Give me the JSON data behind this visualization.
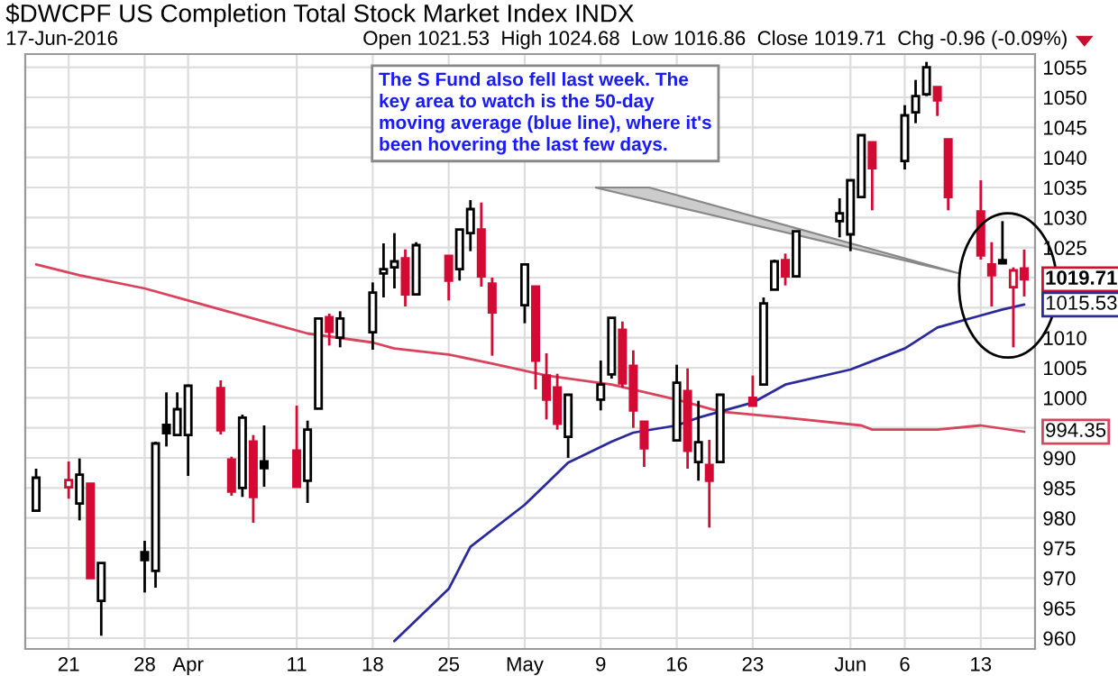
{
  "chart_data": {
    "type": "candlestick",
    "title": "$DWCPF US Completion Total Stock Market Index INDX",
    "subtitle": "17-Jun-2016",
    "annotations": [
      "Open 1021.53  High 1024.68  Low 1016.86  Close 1019.71  Chg -0.96 (-0.09%)",
      "The S Fund also fell last week. The\nkey area to watch is the 50-day\nmoving average (blue line), where it's\nbeen hovering the last few days."
    ],
    "x": [
      "2016-03-18",
      "2016-03-21",
      "2016-03-22",
      "2016-03-23",
      "2016-03-24",
      "2016-03-28",
      "2016-03-29",
      "2016-03-30",
      "2016-03-31",
      "2016-04-01",
      "2016-04-04",
      "2016-04-05",
      "2016-04-06",
      "2016-04-07",
      "2016-04-08",
      "2016-04-11",
      "2016-04-12",
      "2016-04-13",
      "2016-04-14",
      "2016-04-15",
      "2016-04-18",
      "2016-04-19",
      "2016-04-20",
      "2016-04-21",
      "2016-04-22",
      "2016-04-25",
      "2016-04-26",
      "2016-04-27",
      "2016-04-28",
      "2016-04-29",
      "2016-05-02",
      "2016-05-03",
      "2016-05-04",
      "2016-05-05",
      "2016-05-06",
      "2016-05-09",
      "2016-05-10",
      "2016-05-11",
      "2016-05-12",
      "2016-05-13",
      "2016-05-16",
      "2016-05-17",
      "2016-05-18",
      "2016-05-19",
      "2016-05-20",
      "2016-05-23",
      "2016-05-24",
      "2016-05-25",
      "2016-05-26",
      "2016-05-27",
      "2016-05-31",
      "2016-06-01",
      "2016-06-02",
      "2016-06-03",
      "2016-06-06",
      "2016-06-07",
      "2016-06-08",
      "2016-06-09",
      "2016-06-10",
      "2016-06-13",
      "2016-06-14",
      "2016-06-15",
      "2016-06-16",
      "2016-06-17"
    ],
    "ohlc": [
      [
        981.2,
        988.2,
        981.2,
        986.7
      ],
      [
        985.1,
        989.4,
        983.2,
        986.3
      ],
      [
        982.4,
        989.9,
        979.6,
        987.2
      ],
      [
        985.7,
        985.7,
        970.0,
        970.0
      ],
      [
        966.2,
        972.5,
        960.4,
        972.5
      ],
      [
        974.3,
        976.2,
        967.6,
        973.0
      ],
      [
        971.2,
        992.7,
        968.4,
        992.4
      ],
      [
        995.5,
        1000.9,
        991.9,
        994.1
      ],
      [
        993.8,
        1000.9,
        993.8,
        998.1
      ],
      [
        993.8,
        1002.2,
        987.0,
        1002.0
      ],
      [
        1001.6,
        1002.9,
        993.9,
        994.6
      ],
      [
        989.7,
        990.2,
        983.7,
        984.4
      ],
      [
        985.0,
        997.2,
        983.5,
        996.7
      ],
      [
        992.7,
        993.8,
        979.2,
        983.5
      ],
      [
        989.4,
        995.4,
        985.2,
        988.3
      ],
      [
        991.2,
        998.7,
        985.2,
        985.2
      ],
      [
        986.2,
        996.2,
        982.5,
        994.7
      ],
      [
        998.2,
        1013.2,
        998.2,
        1013.2
      ],
      [
        1013.4,
        1014.0,
        1008.7,
        1011.0
      ],
      [
        1010.0,
        1014.4,
        1008.4,
        1013.2
      ],
      [
        1010.9,
        1019.2,
        1008.0,
        1017.5
      ],
      [
        1020.7,
        1025.7,
        1016.7,
        1021.4
      ],
      [
        1021.7,
        1027.4,
        1018.2,
        1022.7
      ],
      [
        1023.2,
        1024.7,
        1015.2,
        1017.2
      ],
      [
        1017.2,
        1025.9,
        1017.2,
        1025.4
      ],
      [
        1023.6,
        1023.6,
        1016.2,
        1019.5
      ],
      [
        1021.4,
        1028.0,
        1019.5,
        1028.0
      ],
      [
        1027.4,
        1032.9,
        1024.4,
        1031.4
      ],
      [
        1028.0,
        1032.5,
        1018.5,
        1020.2
      ],
      [
        1019.0,
        1020.0,
        1007.0,
        1014.2
      ],
      [
        1015.4,
        1022.2,
        1012.4,
        1022.2
      ],
      [
        1018.5,
        1018.5,
        1001.4,
        1006.2
      ],
      [
        1003.7,
        1007.4,
        996.4,
        999.7
      ],
      [
        1001.7,
        1004.0,
        994.7,
        995.7
      ],
      [
        993.5,
        1000.5,
        990.0,
        1000.5
      ],
      [
        999.7,
        1006.2,
        997.9,
        1002.2
      ],
      [
        1003.9,
        1013.3,
        1003.2,
        1013.3
      ],
      [
        1011.3,
        1012.7,
        1001.7,
        1002.4
      ],
      [
        1005.3,
        1007.9,
        995.0,
        997.9
      ],
      [
        996.0,
        996.0,
        988.5,
        991.6
      ],
      [
        992.9,
        1005.5,
        992.9,
        1002.5
      ],
      [
        1001.1,
        1004.9,
        988.2,
        991.2
      ],
      [
        989.3,
        999.5,
        986.2,
        992.6
      ],
      [
        988.8,
        993.0,
        978.4,
        986.2
      ],
      [
        989.3,
        1000.5,
        989.3,
        1000.5
      ],
      [
        1000.0,
        1003.7,
        998.7,
        998.7
      ],
      [
        1002.2,
        1016.7,
        1002.2,
        1015.7
      ],
      [
        1018.0,
        1023.0,
        1018.0,
        1022.7
      ],
      [
        1022.9,
        1024.0,
        1018.7,
        1020.2
      ],
      [
        1020.2,
        1027.7,
        1020.2,
        1027.7
      ],
      [
        1029.4,
        1033.2,
        1026.7,
        1030.7
      ],
      [
        1027.2,
        1036.2,
        1024.4,
        1036.2
      ],
      [
        1033.4,
        1043.7,
        1033.4,
        1043.7
      ],
      [
        1042.5,
        1042.5,
        1031.2,
        1038.2
      ],
      [
        1039.4,
        1048.7,
        1038.0,
        1047.0
      ],
      [
        1047.5,
        1052.9,
        1045.7,
        1050.2
      ],
      [
        1050.5,
        1055.9,
        1050.2,
        1055.0
      ],
      [
        1051.7,
        1051.7,
        1046.9,
        1049.5
      ],
      [
        1043.0,
        1043.0,
        1031.2,
        1033.4
      ],
      [
        1031.0,
        1036.2,
        1023.0,
        1023.7
      ],
      [
        1022.2,
        1025.9,
        1015.2,
        1020.4
      ],
      [
        1022.9,
        1029.4,
        1022.4,
        1022.4
      ],
      [
        1018.4,
        1021.7,
        1008.4,
        1021.2
      ],
      [
        1021.53,
        1024.68,
        1016.86,
        1019.71
      ]
    ],
    "colors": [
      "#000000",
      "#d40a34",
      "#000000",
      "#d40a34",
      "#000000",
      "#000000",
      "#000000",
      "#000000",
      "#000000",
      "#000000",
      "#d40a34",
      "#d40a34",
      "#000000",
      "#d40a34",
      "#000000",
      "#d40a34",
      "#000000",
      "#000000",
      "#d40a34",
      "#000000",
      "#000000",
      "#000000",
      "#000000",
      "#d40a34",
      "#000000",
      "#d40a34",
      "#000000",
      "#000000",
      "#d40a34",
      "#d40a34",
      "#000000",
      "#d40a34",
      "#d40a34",
      "#d40a34",
      "#000000",
      "#000000",
      "#000000",
      "#d40a34",
      "#d40a34",
      "#d40a34",
      "#000000",
      "#d40a34",
      "#000000",
      "#d40a34",
      "#000000",
      "#d40a34",
      "#000000",
      "#000000",
      "#d40a34",
      "#000000",
      "#000000",
      "#000000",
      "#000000",
      "#d40a34",
      "#000000",
      "#000000",
      "#000000",
      "#d40a34",
      "#d40a34",
      "#d40a34",
      "#d40a34",
      "#000000",
      "#d40a34",
      "#d40a34"
    ],
    "value_labels": [
      null,
      null,
      null,
      null,
      null,
      null,
      null,
      null,
      null,
      null,
      null,
      null,
      null,
      null,
      null,
      null,
      null,
      null,
      null,
      null,
      null,
      null,
      null,
      null,
      null,
      null,
      null,
      null,
      null,
      null,
      null,
      null,
      null,
      null,
      null,
      null,
      null,
      null,
      null,
      null,
      null,
      null,
      null,
      null,
      null,
      null,
      null,
      null,
      null,
      null,
      null,
      null,
      null,
      null,
      null,
      null,
      null,
      null,
      null,
      null,
      null,
      null,
      null,
      "1019.71"
    ],
    "series": [
      {
        "type": "line",
        "color": "#d9435e",
        "x": [
          "2016-03-18",
          "2016-03-22",
          "2016-03-28",
          "2016-04-01",
          "2016-04-07",
          "2016-04-12",
          "2016-04-18",
          "2016-04-20",
          "2016-04-25",
          "2016-04-29",
          "2016-05-04",
          "2016-05-10",
          "2016-05-16",
          "2016-05-20",
          "2016-05-26",
          "2016-06-02",
          "2016-06-03",
          "2016-06-09",
          "2016-06-13",
          "2016-06-17"
        ],
        "values": [
          1022.2,
          1020.4,
          1018.2,
          1016.2,
          1013.2,
          1010.7,
          1009.2,
          1008.2,
          1007.2,
          1005.7,
          1003.7,
          1002.2,
          999.7,
          997.7,
          996.7,
          995.4,
          994.7,
          994.7,
          995.4,
          994.35
        ],
        "value_labels": [
          null,
          null,
          null,
          null,
          null,
          null,
          null,
          null,
          null,
          null,
          null,
          null,
          null,
          null,
          null,
          null,
          null,
          null,
          null,
          "994.35"
        ]
      },
      {
        "type": "line",
        "color": "#2a2a9c",
        "x": [
          "2016-04-20",
          "2016-04-25",
          "2016-04-27",
          "2016-05-02",
          "2016-05-04",
          "2016-05-06",
          "2016-05-10",
          "2016-05-12",
          "2016-05-16",
          "2016-05-18",
          "2016-05-20",
          "2016-05-23",
          "2016-05-26",
          "2016-06-01",
          "2016-06-06",
          "2016-06-09",
          "2016-06-13",
          "2016-06-15",
          "2016-06-17"
        ],
        "values": [
          959.5,
          968.2,
          975.2,
          982.2,
          985.7,
          989.2,
          992.7,
          994.2,
          995.4,
          996.7,
          997.7,
          999.2,
          1002.2,
          1004.7,
          1008.2,
          1011.7,
          1013.7,
          1014.7,
          1015.53
        ],
        "value_labels": [
          null,
          null,
          null,
          null,
          null,
          null,
          null,
          null,
          null,
          null,
          null,
          null,
          null,
          null,
          null,
          null,
          null,
          null,
          "1015.53"
        ]
      }
    ],
    "xlim": [
      "2016-03-17",
      "2016-06-18"
    ],
    "xticks": [
      {
        "value": "2016-03-21",
        "label": "21"
      },
      {
        "value": "2016-03-28",
        "label": "28"
      },
      {
        "value": "2016-04-01",
        "label": "Apr"
      },
      {
        "value": "2016-04-11",
        "label": "11"
      },
      {
        "value": "2016-04-18",
        "label": "18"
      },
      {
        "value": "2016-04-25",
        "label": "25"
      },
      {
        "value": "2016-05-02",
        "label": "May"
      },
      {
        "value": "2016-05-09",
        "label": "9"
      },
      {
        "value": "2016-05-16",
        "label": "16"
      },
      {
        "value": "2016-05-23",
        "label": "23"
      },
      {
        "value": "2016-06-01",
        "label": "Jun"
      },
      {
        "value": "2016-06-06",
        "label": "6"
      },
      {
        "value": "2016-06-13",
        "label": "13"
      }
    ],
    "ylim": [
      958.2,
      1057.2
    ],
    "yticks": [
      960,
      965,
      970,
      975,
      980,
      985,
      990,
      {
        "value": 995,
        "label": null
      },
      1000,
      1005,
      1010,
      {
        "value": 1015,
        "label": null
      },
      {
        "value": 1020,
        "label": null
      },
      1025,
      1030,
      1035,
      1040,
      1045,
      1050,
      1055
    ],
    "grid": true
  }
}
